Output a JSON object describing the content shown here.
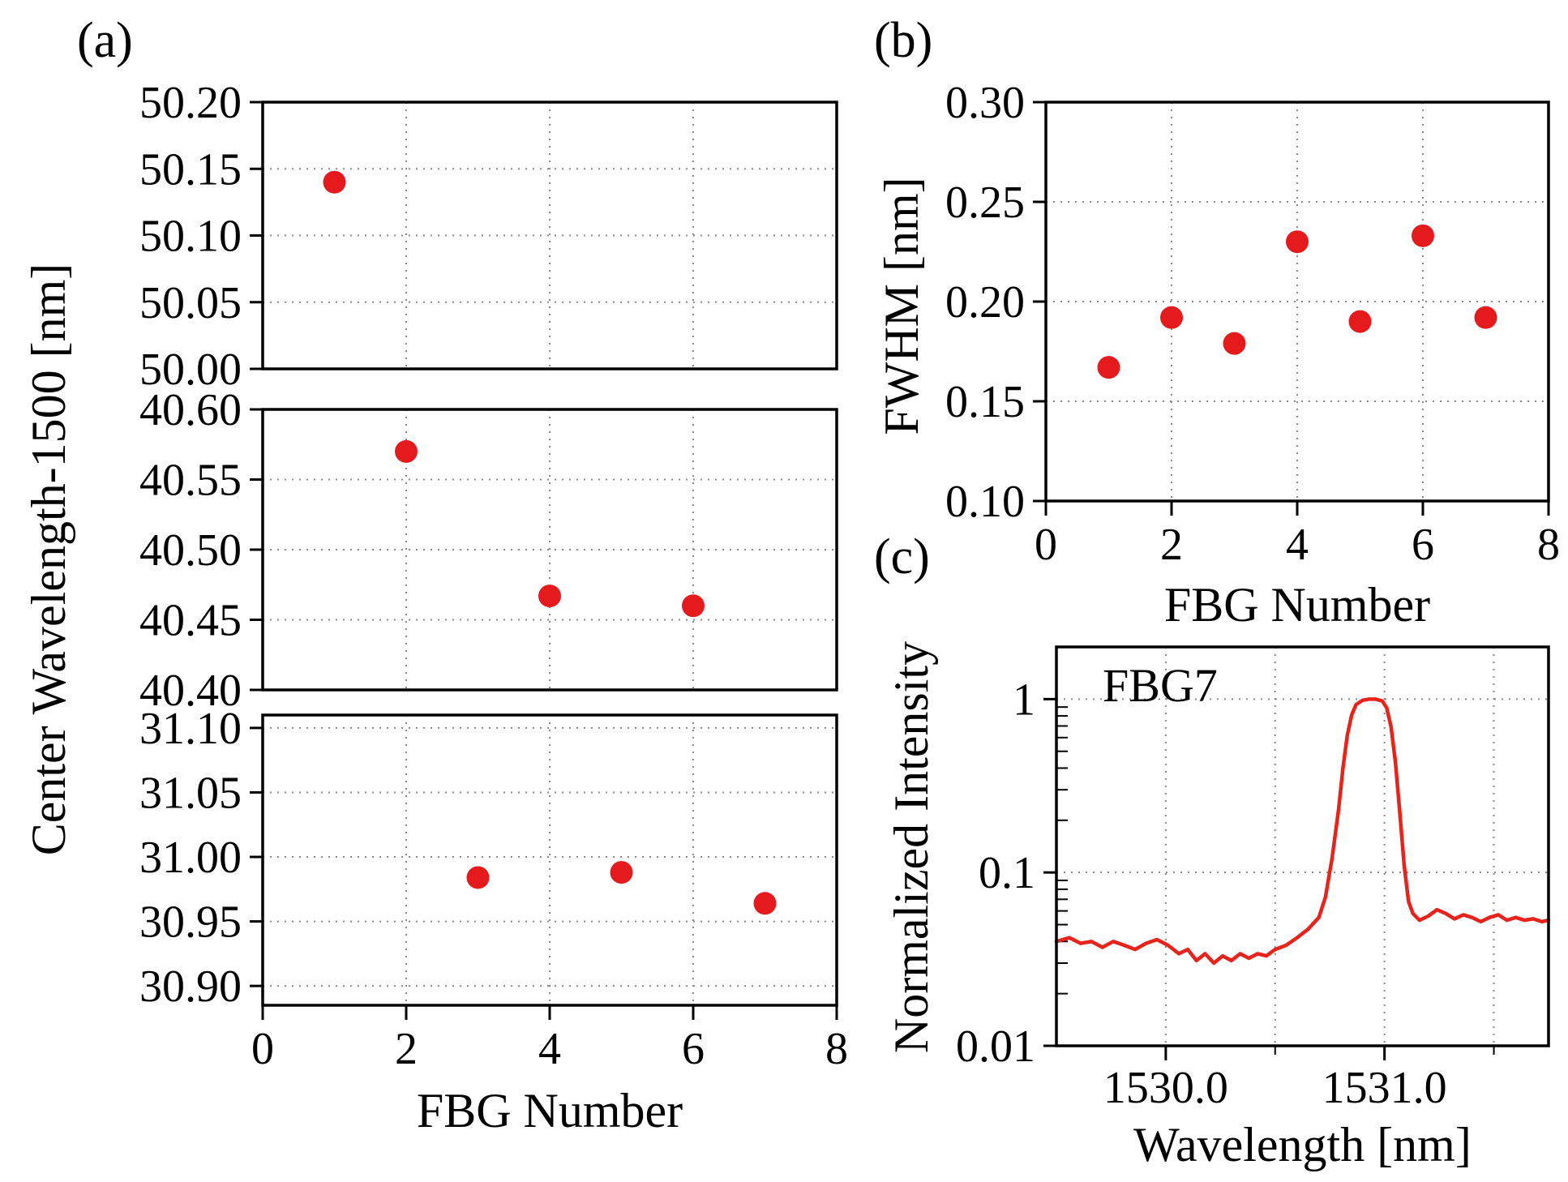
{
  "panels": {
    "a": "(a)",
    "b": "(b)",
    "c": "(c)"
  },
  "style": {
    "marker_color": "#e41a1c",
    "line_color": "#e8231c",
    "grid_color": "#8a8a8a",
    "axis_color": "#000000",
    "background": "#ffffff"
  },
  "chart_data": [
    {
      "id": "a",
      "type": "scatter",
      "xlabel": "FBG Number",
      "ylabel": "Center Wavelength-1500 [nm]",
      "xlim": [
        0,
        8
      ],
      "xticks": [
        0,
        2,
        4,
        6,
        8
      ],
      "xtick_labels": [
        "0",
        "2",
        "4",
        "6",
        "8"
      ],
      "grid": true,
      "broken_y_axis": true,
      "segments": [
        {
          "ylim": [
            50.0,
            50.2
          ],
          "yticks": [
            50.0,
            50.05,
            50.1,
            50.15,
            50.2
          ],
          "ytick_labels": [
            "50.00",
            "50.05",
            "50.10",
            "50.15",
            "50.20"
          ],
          "points": [
            {
              "x": 1,
              "y": 50.14
            }
          ]
        },
        {
          "ylim": [
            40.4,
            40.6
          ],
          "yticks": [
            40.4,
            40.45,
            40.5,
            40.55,
            40.6
          ],
          "ytick_labels": [
            "40.40",
            "40.45",
            "40.50",
            "40.55",
            "40.60"
          ],
          "points": [
            {
              "x": 2,
              "y": 40.57
            },
            {
              "x": 4,
              "y": 40.467
            },
            {
              "x": 6,
              "y": 40.46
            }
          ]
        },
        {
          "ylim": [
            30.885,
            31.11
          ],
          "yticks": [
            30.9,
            30.95,
            31.0,
            31.05,
            31.1
          ],
          "ytick_labels": [
            "30.90",
            "30.95",
            "31.00",
            "31.05",
            "31.10"
          ],
          "points": [
            {
              "x": 3,
              "y": 30.984
            },
            {
              "x": 5,
              "y": 30.988
            },
            {
              "x": 7,
              "y": 30.964
            }
          ]
        }
      ]
    },
    {
      "id": "b",
      "type": "scatter",
      "xlabel": "FBG Number",
      "ylabel": "FWHM [nm]",
      "xlim": [
        0,
        8
      ],
      "xticks": [
        0,
        2,
        4,
        6,
        8
      ],
      "xtick_labels": [
        "0",
        "2",
        "4",
        "6",
        "8"
      ],
      "ylim": [
        0.1,
        0.3
      ],
      "yticks": [
        0.1,
        0.15,
        0.2,
        0.25,
        0.3
      ],
      "ytick_labels": [
        "0.10",
        "0.15",
        "0.20",
        "0.25",
        "0.30"
      ],
      "grid": true,
      "points": [
        {
          "x": 1,
          "y": 0.167
        },
        {
          "x": 2,
          "y": 0.192
        },
        {
          "x": 3,
          "y": 0.179
        },
        {
          "x": 4,
          "y": 0.23
        },
        {
          "x": 5,
          "y": 0.19
        },
        {
          "x": 6,
          "y": 0.233
        },
        {
          "x": 7,
          "y": 0.192
        }
      ]
    },
    {
      "id": "c",
      "type": "line",
      "xlabel": "Wavelength [nm]",
      "ylabel": "Normalized Intensity",
      "annotation": "FBG7",
      "xlim": [
        1529.5,
        1531.75
      ],
      "xticks_major": [
        1530.0,
        1531.0
      ],
      "xtick_labels": [
        "1530.0",
        "1531.0"
      ],
      "xticks_minor": [
        1530.5,
        1531.5
      ],
      "yscale": "log",
      "ylim": [
        0.01,
        2.0
      ],
      "yticks": [
        1,
        0.1,
        0.01
      ],
      "ytick_labels": [
        "1",
        "0.1",
        "0.01"
      ],
      "grid": true,
      "series": [
        {
          "name": "FBG7",
          "points": [
            [
              1529.5,
              0.04
            ],
            [
              1529.56,
              0.042
            ],
            [
              1529.61,
              0.039
            ],
            [
              1529.66,
              0.04
            ],
            [
              1529.71,
              0.037
            ],
            [
              1529.76,
              0.04
            ],
            [
              1529.81,
              0.038
            ],
            [
              1529.86,
              0.036
            ],
            [
              1529.91,
              0.039
            ],
            [
              1529.96,
              0.041
            ],
            [
              1530.01,
              0.038
            ],
            [
              1530.06,
              0.034
            ],
            [
              1530.1,
              0.036
            ],
            [
              1530.14,
              0.031
            ],
            [
              1530.18,
              0.034
            ],
            [
              1530.22,
              0.03
            ],
            [
              1530.26,
              0.033
            ],
            [
              1530.3,
              0.031
            ],
            [
              1530.34,
              0.034
            ],
            [
              1530.38,
              0.032
            ],
            [
              1530.42,
              0.034
            ],
            [
              1530.46,
              0.033
            ],
            [
              1530.5,
              0.036
            ],
            [
              1530.55,
              0.038
            ],
            [
              1530.6,
              0.042
            ],
            [
              1530.65,
              0.047
            ],
            [
              1530.7,
              0.055
            ],
            [
              1530.73,
              0.072
            ],
            [
              1530.76,
              0.12
            ],
            [
              1530.79,
              0.23
            ],
            [
              1530.81,
              0.4
            ],
            [
              1530.83,
              0.62
            ],
            [
              1530.85,
              0.81
            ],
            [
              1530.87,
              0.93
            ],
            [
              1530.9,
              0.985
            ],
            [
              1530.93,
              1.0
            ],
            [
              1530.96,
              1.0
            ],
            [
              1530.99,
              0.975
            ],
            [
              1531.01,
              0.89
            ],
            [
              1531.03,
              0.69
            ],
            [
              1531.05,
              0.43
            ],
            [
              1531.07,
              0.22
            ],
            [
              1531.09,
              0.11
            ],
            [
              1531.11,
              0.068
            ],
            [
              1531.13,
              0.058
            ],
            [
              1531.16,
              0.053
            ],
            [
              1531.2,
              0.056
            ],
            [
              1531.24,
              0.061
            ],
            [
              1531.28,
              0.058
            ],
            [
              1531.32,
              0.054
            ],
            [
              1531.36,
              0.057
            ],
            [
              1531.4,
              0.055
            ],
            [
              1531.44,
              0.052
            ],
            [
              1531.48,
              0.055
            ],
            [
              1531.52,
              0.057
            ],
            [
              1531.56,
              0.053
            ],
            [
              1531.6,
              0.055
            ],
            [
              1531.64,
              0.053
            ],
            [
              1531.68,
              0.054
            ],
            [
              1531.72,
              0.052
            ],
            [
              1531.75,
              0.053
            ]
          ]
        }
      ]
    }
  ]
}
